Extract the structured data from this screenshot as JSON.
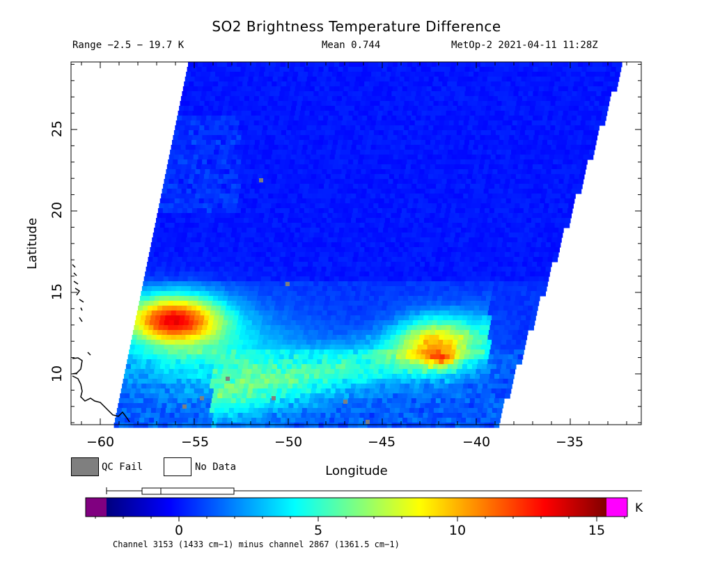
{
  "header": {
    "title": "SO2 Brightness Temperature Difference",
    "range_text": "Range −2.5 − 19.7 K",
    "mean_text": "Mean 0.744",
    "satellite_text": "MetOp-2 2021-04-11 11:28Z"
  },
  "axes": {
    "x_label": "Longitude",
    "y_label": "Latitude",
    "x_ticks": [
      "−60",
      "−55",
      "−50",
      "−45",
      "−40",
      "−35"
    ],
    "y_ticks": [
      "10",
      "15",
      "20",
      "25"
    ],
    "lon_range": [
      -61.5,
      -31.5
    ],
    "lat_range": [
      6.5,
      29
    ]
  },
  "legend": {
    "qc_fail": "QC Fail",
    "no_data": "No Data"
  },
  "colorbar": {
    "unit": "K",
    "ticks": [
      "0",
      "5",
      "10",
      "15"
    ],
    "value_range": [
      -3.3,
      16
    ],
    "caption": "Channel 3153 (1433 cm−1) minus channel 2867 (1361.5 cm−1)"
  },
  "colors": {
    "qc_fail": "#7f7f7f",
    "no_data": "#ffffff",
    "below_min": "#800080",
    "above_max": "#ff00ff"
  }
}
